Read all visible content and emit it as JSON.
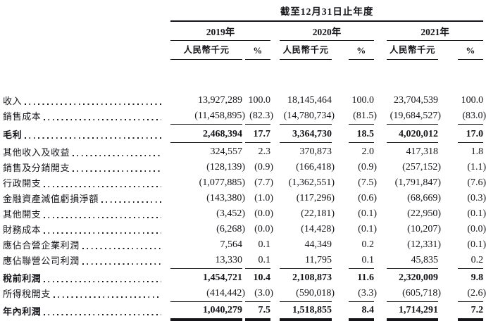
{
  "colors": {
    "ink": "#15151a",
    "paper": "#ffffff"
  },
  "table": {
    "period_header": "截至12月31日止年度",
    "unit_header": "人民幣千元",
    "percent_header": "%",
    "years": [
      "2019年",
      "2020年",
      "2021年"
    ],
    "rows": [
      {
        "label": "收入",
        "bold": false,
        "values": [
          "13,927,289",
          "100.0",
          "18,145,464",
          "100.0",
          "23,704,539",
          "100.0"
        ]
      },
      {
        "label": "銷售成本",
        "rule_below": true,
        "values": [
          "(11,458,895)",
          "(82.3)",
          "(14,780,734)",
          "(81.5)",
          "(19,684,527)",
          "(83.0)"
        ]
      },
      {
        "label": "毛利",
        "bold": true,
        "tall": true,
        "rule_below": true,
        "values": [
          "2,468,394",
          "17.7",
          "3,364,730",
          "18.5",
          "4,020,012",
          "17.0"
        ]
      },
      {
        "label": "其他收入及收益",
        "gap_above": true,
        "values": [
          "324,557",
          "2.3",
          "370,873",
          "2.0",
          "417,318",
          "1.8"
        ]
      },
      {
        "label": "銷售及分銷開支",
        "values": [
          "(128,139)",
          "(0.9)",
          "(166,418)",
          "(0.9)",
          "(257,152)",
          "(1.1)"
        ]
      },
      {
        "label": "行政開支",
        "values": [
          "(1,077,885)",
          "(7.7)",
          "(1,362,551)",
          "(7.5)",
          "(1,791,847)",
          "(7.6)"
        ]
      },
      {
        "label": "金融資產減值虧損淨額",
        "values": [
          "(143,380)",
          "(1.0)",
          "(117,296)",
          "(0.6)",
          "(68,669)",
          "(0.3)"
        ]
      },
      {
        "label": "其他開支",
        "values": [
          "(3,452)",
          "(0.0)",
          "(22,181)",
          "(0.1)",
          "(22,950)",
          "(0.1)"
        ]
      },
      {
        "label": "財務成本",
        "values": [
          "(6,268)",
          "(0.0)",
          "(14,428)",
          "(0.1)",
          "(10,207)",
          "(0.0)"
        ]
      },
      {
        "label": "應佔合營企業利潤",
        "values": [
          "7,564",
          "0.1",
          "44,349",
          "0.2",
          "(12,331)",
          "(0.1)"
        ]
      },
      {
        "label": "應佔聯營公司利潤",
        "rule_below": true,
        "values": [
          "13,330",
          "0.1",
          "11,795",
          "0.1",
          "45,835",
          "0.2"
        ]
      },
      {
        "label": "稅前利潤",
        "bold": true,
        "gap_above": true,
        "values": [
          "1,454,721",
          "10.4",
          "2,108,873",
          "11.6",
          "2,320,009",
          "9.8"
        ]
      },
      {
        "label": "所得稅開支",
        "rule_below": true,
        "values": [
          "(414,442)",
          "(3.0)",
          "(590,018)",
          "(3.3)",
          "(605,718)",
          "(2.6)"
        ]
      },
      {
        "label": "年內利潤",
        "bold": true,
        "gap_above": true,
        "double_rule_below": true,
        "values": [
          "1,040,279",
          "7.5",
          "1,518,855",
          "8.4",
          "1,714,291",
          "7.2"
        ]
      }
    ]
  }
}
